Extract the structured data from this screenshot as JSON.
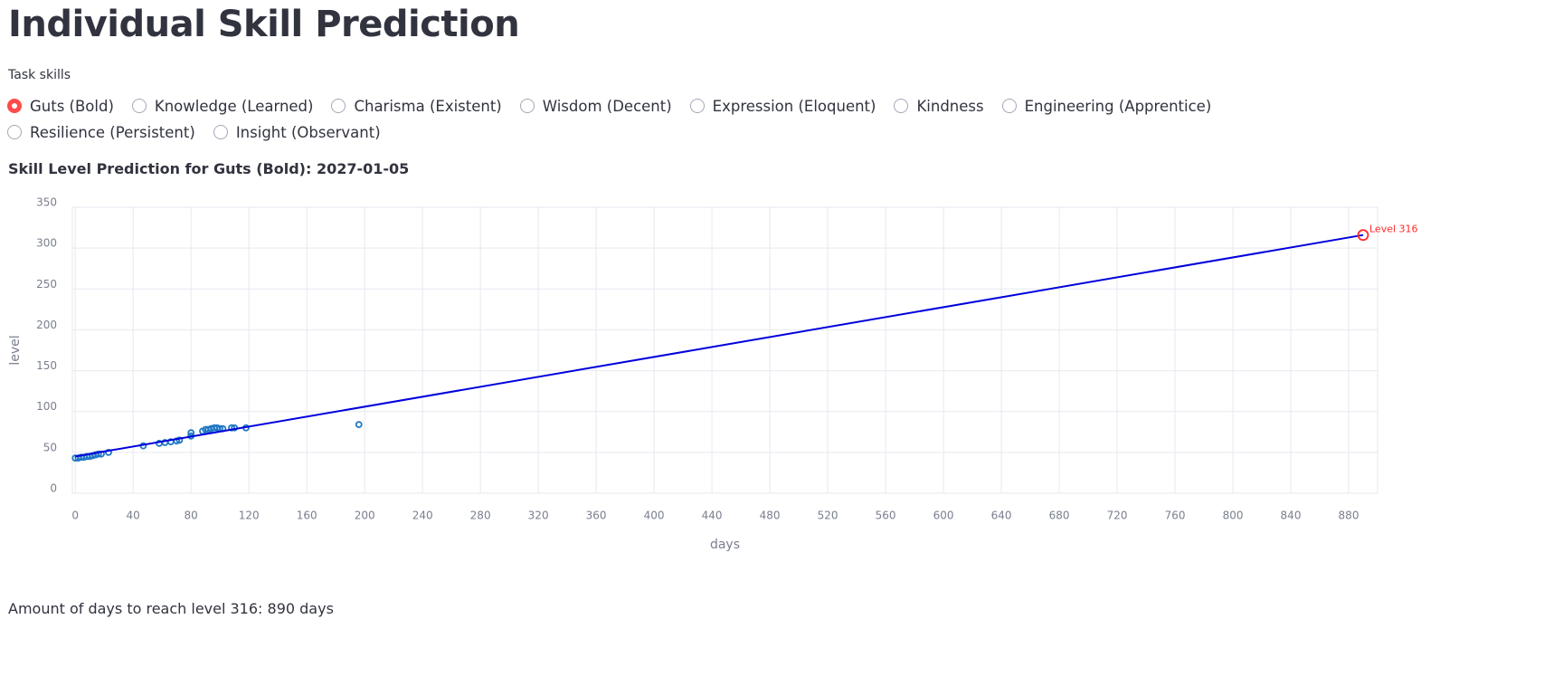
{
  "header": {
    "title": "Individual Skill Prediction"
  },
  "radio_group": {
    "label": "Task skills",
    "selected": 0,
    "options": [
      "Guts (Bold)",
      "Knowledge (Learned)",
      "Charisma (Existent)",
      "Wisdom (Decent)",
      "Expression (Eloquent)",
      "Kindness",
      "Engineering (Apprentice)",
      "Resilience (Persistent)",
      "Insight (Observant)"
    ]
  },
  "subheader": "Skill Level Prediction for Guts (Bold): 2027-01-05",
  "chart_data": {
    "type": "scatter",
    "x_label": "days",
    "y_label": "level",
    "x": [
      0,
      2,
      4,
      6,
      8,
      10,
      12,
      14,
      16,
      18,
      23,
      47,
      58,
      62,
      66,
      70,
      72,
      80,
      80,
      88,
      90,
      92,
      94,
      96,
      98,
      100,
      102,
      108,
      110,
      118,
      196
    ],
    "values": [
      43,
      43,
      44,
      44,
      45,
      45,
      46,
      47,
      48,
      48,
      50,
      58,
      61,
      62,
      63,
      64,
      65,
      70,
      74,
      76,
      78,
      78,
      79,
      80,
      80,
      79,
      79,
      80,
      80,
      80,
      84
    ],
    "color": "#1f77c4",
    "trend_line": {
      "x": [
        0,
        890
      ],
      "values": [
        45,
        316
      ],
      "color": "#0000dd"
    },
    "annotation": {
      "x": 890,
      "value": 316,
      "label": "Level 316",
      "color": "#ff2b2b"
    },
    "xlim": [
      -2,
      900
    ],
    "ylim": [
      0,
      350
    ],
    "xticks": [
      0,
      40,
      80,
      120,
      160,
      200,
      240,
      280,
      320,
      360,
      400,
      440,
      480,
      520,
      560,
      600,
      640,
      680,
      720,
      760,
      800,
      840,
      880
    ],
    "yticks": [
      0,
      50,
      100,
      150,
      200,
      250,
      300,
      350
    ],
    "grid": true
  },
  "footer": "Amount of days to reach level 316: 890 days"
}
